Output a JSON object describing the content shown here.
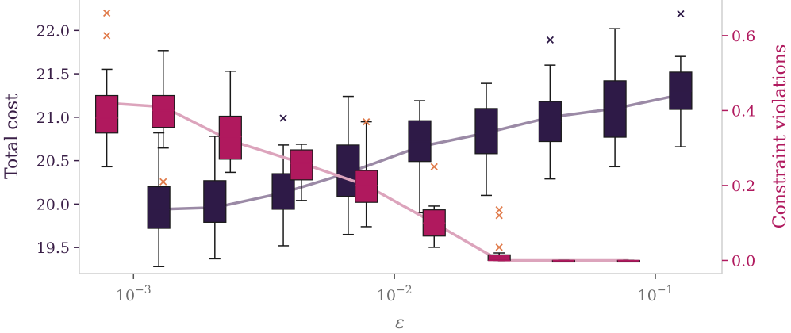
{
  "chart_data": {
    "type": "box",
    "xlabel": "ε",
    "xscale": "log",
    "xlim": [
      0.00062,
      0.18
    ],
    "xticks": [
      {
        "value": 0.001,
        "base": "10",
        "exp": "−3"
      },
      {
        "value": 0.01,
        "base": "10",
        "exp": "−2"
      },
      {
        "value": 0.1,
        "base": "10",
        "exp": "−1"
      }
    ],
    "left_axis": {
      "label": "Total cost",
      "color": "#3a1f47",
      "ylim": [
        19.2,
        22.35
      ],
      "ticks": [
        "19.5",
        "20.0",
        "20.5",
        "21.0",
        "21.5",
        "22.0"
      ]
    },
    "right_axis": {
      "label": "Constraint violations",
      "color": "#b0195e",
      "ylim": [
        -0.035,
        0.695
      ],
      "ticks": [
        "0.0",
        "0.2",
        "0.4",
        "0.6"
      ]
    },
    "series": [
      {
        "name": "Total cost",
        "axis": "left",
        "box_color": "#2e1a47",
        "mean_line_color": "#9b8aa6",
        "boxes": [
          {
            "x": 0.00125,
            "whislo": 19.28,
            "q1": 19.72,
            "med": 19.94,
            "q3": 20.2,
            "whishi": 20.82,
            "mean": 19.94,
            "fliers": []
          },
          {
            "x": 0.00205,
            "whislo": 19.37,
            "q1": 19.79,
            "med": 19.97,
            "q3": 20.27,
            "whishi": 20.78,
            "mean": 19.96,
            "fliers": []
          },
          {
            "x": 0.00375,
            "whislo": 19.52,
            "q1": 19.94,
            "med": 20.13,
            "q3": 20.35,
            "whishi": 20.68,
            "mean": 20.13,
            "fliers": [
              20.99
            ]
          },
          {
            "x": 0.00665,
            "whislo": 19.65,
            "q1": 20.09,
            "med": 20.36,
            "q3": 20.68,
            "whishi": 21.24,
            "mean": 20.36,
            "fliers": []
          },
          {
            "x": 0.0125,
            "whislo": 19.9,
            "q1": 20.49,
            "med": 20.72,
            "q3": 20.96,
            "whishi": 21.19,
            "mean": 20.66,
            "fliers": []
          },
          {
            "x": 0.0225,
            "whislo": 20.1,
            "q1": 20.58,
            "med": 20.81,
            "q3": 21.1,
            "whishi": 21.39,
            "mean": 20.82,
            "fliers": []
          },
          {
            "x": 0.0395,
            "whislo": 20.29,
            "q1": 20.72,
            "med": 20.95,
            "q3": 21.18,
            "whishi": 21.6,
            "mean": 21.0,
            "fliers": [
              21.89
            ]
          },
          {
            "x": 0.07,
            "whislo": 20.43,
            "q1": 20.77,
            "med": 21.1,
            "q3": 21.42,
            "whishi": 22.02,
            "mean": 21.1,
            "fliers": []
          },
          {
            "x": 0.125,
            "whislo": 20.66,
            "q1": 21.09,
            "med": 21.3,
            "q3": 21.52,
            "whishi": 21.7,
            "mean": 21.26,
            "fliers": [
              22.19
            ]
          }
        ]
      },
      {
        "name": "Constraint violations",
        "axis": "right",
        "box_color": "#b0195e",
        "mean_line_color": "#dca4bc",
        "flier_color": "#e07b4b",
        "boxes": [
          {
            "x": 0.00079,
            "whislo": 0.25,
            "q1": 0.34,
            "med": 0.38,
            "q3": 0.44,
            "whishi": 0.51,
            "mean": 0.42,
            "fliers": [
              0.6,
              0.66
            ]
          },
          {
            "x": 0.0013,
            "whislo": 0.3,
            "q1": 0.355,
            "med": 0.4,
            "q3": 0.44,
            "whishi": 0.56,
            "mean": 0.41,
            "fliers": [
              0.21
            ]
          },
          {
            "x": 0.00235,
            "whislo": 0.235,
            "q1": 0.27,
            "med": 0.33,
            "q3": 0.385,
            "whishi": 0.505,
            "mean": 0.32,
            "fliers": []
          },
          {
            "x": 0.0044,
            "whislo": 0.16,
            "q1": 0.215,
            "med": 0.26,
            "q3": 0.295,
            "whishi": 0.31,
            "mean": 0.26,
            "fliers": []
          },
          {
            "x": 0.0078,
            "whislo": 0.09,
            "q1": 0.155,
            "med": 0.2,
            "q3": 0.24,
            "whishi": 0.37,
            "mean": 0.2,
            "fliers": [
              0.37
            ]
          },
          {
            "x": 0.0142,
            "whislo": 0.035,
            "q1": 0.065,
            "med": 0.1,
            "q3": 0.135,
            "whishi": 0.145,
            "mean": 0.1,
            "fliers": [
              0.25
            ]
          },
          {
            "x": 0.0252,
            "whislo": 0.0,
            "q1": 0.0,
            "med": 0.0,
            "q3": 0.015,
            "whishi": 0.02,
            "mean": 0.0,
            "fliers": [
              0.035,
              0.12,
              0.135
            ]
          },
          {
            "x": 0.0445,
            "whislo": 0.0,
            "q1": 0.0,
            "med": 0.0,
            "q3": 0.0,
            "whishi": 0.0,
            "mean": 0.0,
            "fliers": []
          },
          {
            "x": 0.079,
            "whislo": 0.0,
            "q1": 0.0,
            "med": 0.0,
            "q3": 0.0,
            "whishi": 0.0,
            "mean": 0.0,
            "fliers": []
          }
        ]
      }
    ],
    "grid": false,
    "legend": "none"
  }
}
